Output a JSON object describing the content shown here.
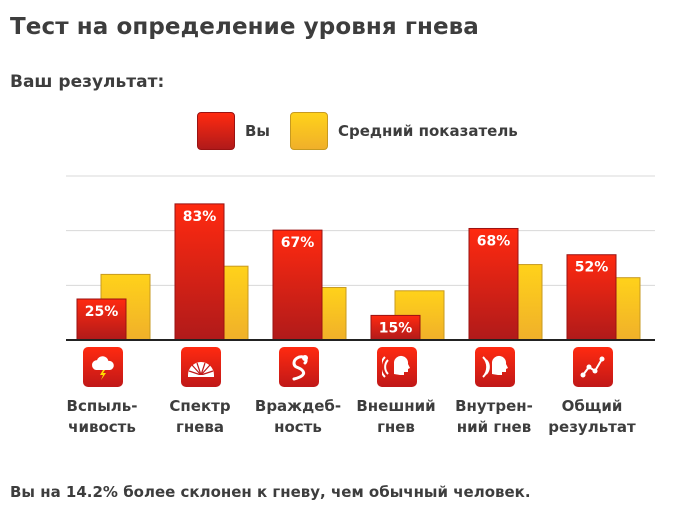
{
  "page": {
    "title": "Тест на определение уровня гнева",
    "subtitle": "Ваш результат:",
    "footer": "Вы на 14.2% более склонен к гневу, чем обычный человек."
  },
  "legend": {
    "you": "Вы",
    "average": "Средний показатель"
  },
  "colors": {
    "you_top": "#ff2a10",
    "you_bottom": "#b01a1a",
    "avg_top": "#ffd21a",
    "avg_bottom": "#f0b02a",
    "grid": "#d8d8d8",
    "baseline": "#222222"
  },
  "chart_data": {
    "type": "bar",
    "categories": [
      [
        "Вспыль-",
        "чивость"
      ],
      [
        "Спектр",
        "гнева"
      ],
      [
        "Враждеб-",
        "ность"
      ],
      [
        "Внешний",
        "гнев"
      ],
      [
        "Внутрен-",
        "ний гнев"
      ],
      [
        "Общий",
        "результат"
      ]
    ],
    "icons": [
      "storm-cloud-icon",
      "spectrum-fan-icon",
      "snake-icon",
      "external-anger-icon",
      "internal-anger-icon",
      "overall-graph-icon"
    ],
    "series": [
      {
        "name": "Вы",
        "values": [
          25,
          83,
          67,
          15,
          68,
          52
        ],
        "labels": [
          "25%",
          "83%",
          "67%",
          "15%",
          "68%",
          "52%"
        ]
      },
      {
        "name": "Средний показатель",
        "values": [
          40,
          45,
          32,
          30,
          46,
          38
        ]
      }
    ],
    "ylim": [
      0,
      100
    ],
    "grid": true,
    "legend_position": "top-center"
  }
}
